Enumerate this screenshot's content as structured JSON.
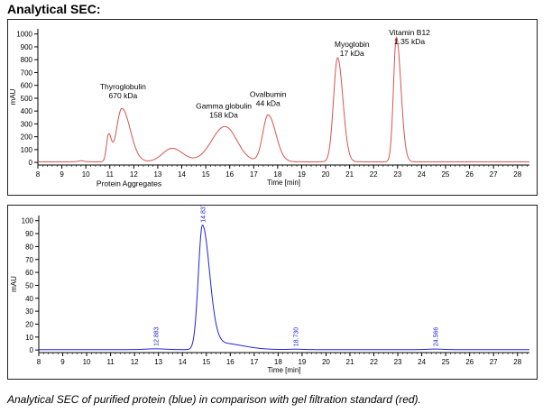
{
  "heading": "Analytical SEC:",
  "caption": "Analytical SEC of purified protein (blue) in comparison with gel filtration standard (red).",
  "colors": {
    "standard": "#d9534f",
    "protein": "#2323d8",
    "axis": "#000000",
    "peak_label": "#2323d8"
  },
  "chart_data": [
    {
      "type": "line",
      "name": "gel-filtration-standard",
      "xlabel": "Time [min]",
      "ylabel": "mAU",
      "xlim": [
        8,
        28.5
      ],
      "ylim": [
        -20,
        1040
      ],
      "xticks": [
        8,
        9,
        10,
        11,
        12,
        13,
        14,
        15,
        16,
        17,
        18,
        19,
        20,
        21,
        22,
        23,
        24,
        25,
        26,
        27,
        28
      ],
      "yticks": [
        0,
        100,
        200,
        300,
        400,
        500,
        600,
        700,
        800,
        900,
        1000
      ],
      "baseline": 5,
      "peaks": [
        {
          "t": 9.8,
          "h": 8,
          "wl": 0.12,
          "wr": 0.12
        },
        {
          "t": 10.95,
          "h": 200,
          "wl": 0.09,
          "wr": 0.11
        },
        {
          "t": 11.5,
          "h": 415,
          "wl": 0.22,
          "wr": 0.35
        },
        {
          "t": 13.6,
          "h": 105,
          "wl": 0.4,
          "wr": 0.45
        },
        {
          "t": 15.8,
          "h": 275,
          "wl": 0.55,
          "wr": 0.5
        },
        {
          "t": 17.6,
          "h": 365,
          "wl": 0.22,
          "wr": 0.32
        },
        {
          "t": 20.5,
          "h": 810,
          "wl": 0.17,
          "wr": 0.22
        },
        {
          "t": 22.95,
          "h": 970,
          "wl": 0.12,
          "wr": 0.19
        }
      ],
      "annotations": [
        {
          "lines": [
            "Thyroglobulin",
            "670 kDa"
          ],
          "x": 11.55,
          "y": 570
        },
        {
          "lines": [
            "Gamma globulin",
            "158 kDa"
          ],
          "x": 15.75,
          "y": 420
        },
        {
          "lines": [
            "Ovalbumin",
            "44 kDa"
          ],
          "x": 17.6,
          "y": 510
        },
        {
          "lines": [
            "Myoglobin",
            "17 kDa"
          ],
          "x": 21.1,
          "y": 900
        },
        {
          "lines": [
            "Vitamin B12",
            "1.35 kDa"
          ],
          "x": 23.5,
          "y": 990
        },
        {
          "lines": [
            "Protein Aggregates"
          ],
          "x": 11.8,
          "y": -185
        }
      ]
    },
    {
      "type": "line",
      "name": "purified-protein",
      "xlabel": "Time [min]",
      "ylabel": "mAU",
      "xlim": [
        8,
        28.5
      ],
      "ylim": [
        -2,
        104
      ],
      "xticks": [
        8,
        9,
        10,
        11,
        12,
        13,
        14,
        15,
        16,
        17,
        18,
        19,
        20,
        21,
        22,
        23,
        24,
        25,
        26,
        27,
        28
      ],
      "yticks": [
        0,
        10,
        20,
        30,
        40,
        50,
        60,
        70,
        80,
        90,
        100
      ],
      "baseline": 0.3,
      "peaks": [
        {
          "t": 12.883,
          "h": 0.6,
          "wl": 0.4,
          "wr": 0.4
        },
        {
          "t": 14.837,
          "h": 96,
          "wl": 0.17,
          "wr": 0.3
        },
        {
          "t": 15.6,
          "h": 5,
          "wl": 0.3,
          "wr": 0.9
        },
        {
          "t": 18.73,
          "h": 0.3,
          "wl": 0.3,
          "wr": 0.3
        },
        {
          "t": 24.566,
          "h": 0.4,
          "wl": 0.3,
          "wr": 0.3
        }
      ],
      "peak_labels": [
        {
          "t": 12.883,
          "label": "12.883"
        },
        {
          "t": 14.837,
          "label": "14.837"
        },
        {
          "t": 18.73,
          "label": "18.730"
        },
        {
          "t": 24.566,
          "label": "24.566"
        }
      ]
    }
  ]
}
